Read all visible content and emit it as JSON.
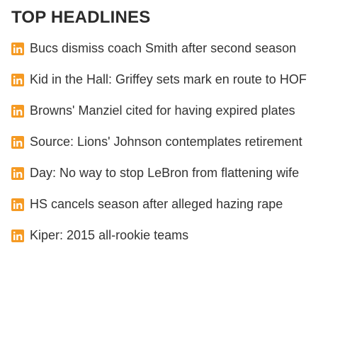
{
  "section": {
    "title": "TOP HEADLINES"
  },
  "colors": {
    "icon_orange": "#f59a23",
    "text": "#333333",
    "title": "#2b2b2b"
  },
  "headlines": [
    {
      "icon": "in-icon",
      "text": "Bucs dismiss coach Smith after second season"
    },
    {
      "icon": "in-icon",
      "text": "Kid in the Hall: Griffey sets mark en route to HOF"
    },
    {
      "icon": "in-icon",
      "text": "Browns' Manziel cited for having expired plates"
    },
    {
      "icon": "in-icon",
      "text": "Source: Lions' Johnson contemplates retirement"
    },
    {
      "icon": "in-icon",
      "text": "Day: No way to stop LeBron from flattening wife"
    },
    {
      "icon": "in-icon",
      "text": "HS cancels season after alleged hazing rape"
    },
    {
      "icon": "in-icon",
      "text": "Kiper: 2015 all-rookie teams"
    }
  ]
}
